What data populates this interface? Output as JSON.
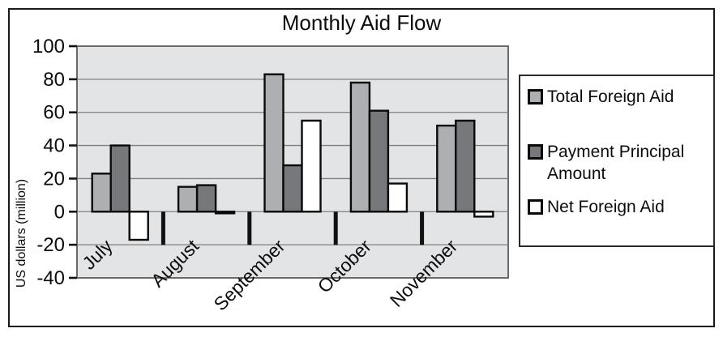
{
  "window": {
    "background": "#ffffff",
    "frame_border_color": "#1a1a1a"
  },
  "chart_data": {
    "type": "bar",
    "title": "Monthly Aid Flow",
    "ylabel": "US dollars (million)",
    "xlabel": "",
    "categories": [
      "July",
      "August",
      "September",
      "October",
      "November"
    ],
    "series": [
      {
        "name": "Total Foreign Aid",
        "color": "#adafb2",
        "values": [
          23,
          15,
          83,
          78,
          52
        ]
      },
      {
        "name": "Payment Principal Amount",
        "color": "#76787b",
        "values": [
          40,
          16,
          28,
          61,
          55
        ]
      },
      {
        "name": "Net Foreign Aid",
        "color": "#ffffff",
        "values": [
          -17,
          -1,
          55,
          17,
          -3
        ]
      }
    ],
    "ylim": [
      -40,
      100
    ],
    "yticks": [
      100,
      80,
      60,
      40,
      20,
      0,
      -20,
      -40
    ],
    "ytick_step": 20,
    "grid": "horizontal",
    "legend_position": "right",
    "plot_background": "#e3e4e5",
    "gridline_color": "#7f7f7f",
    "plot_border_color": "#6a6a6a",
    "bar_outline_color": "#0a0a0a",
    "axis_tick_color": "#111111",
    "category_label_angle": -45
  }
}
